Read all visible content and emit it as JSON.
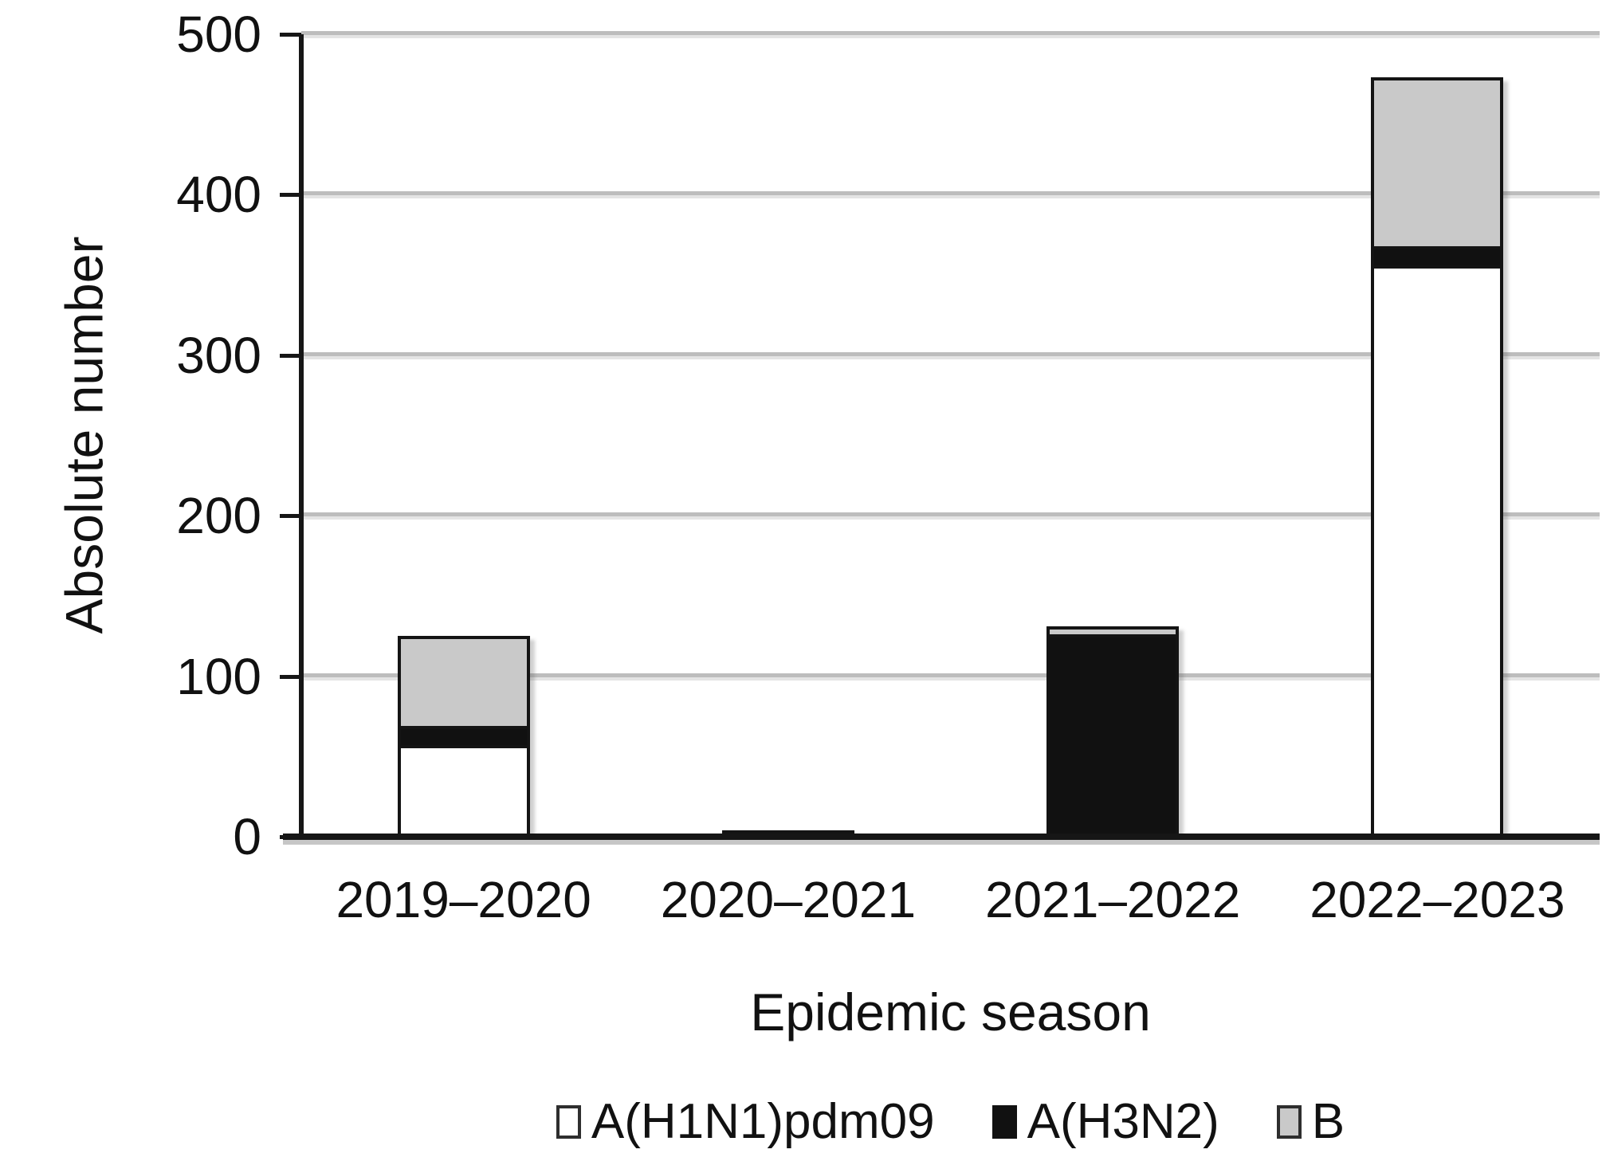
{
  "chart_data": {
    "type": "bar",
    "stacked": true,
    "categories": [
      "2019–2020",
      "2020–2021",
      "2021–2022",
      "2022–2023"
    ],
    "series": [
      {
        "name": "A(H1N1)pdm09",
        "color": "#ffffff",
        "values": [
          57,
          0,
          0,
          356
        ]
      },
      {
        "name": "A(H3N2)",
        "color": "#111111",
        "values": [
          12,
          2,
          126,
          12
        ]
      },
      {
        "name": "B",
        "color": "#c9c9c9",
        "values": [
          56,
          0,
          5,
          105
        ]
      }
    ],
    "totals": [
      125,
      2,
      131,
      473
    ],
    "xlabel": "Epidemic season",
    "ylabel": "Absolute number",
    "ylim": [
      0,
      500
    ],
    "yticks": [
      0,
      100,
      200,
      300,
      400,
      500
    ],
    "grid": true,
    "legend_position": "bottom",
    "axis_color": "#161616",
    "bar_outline_color": "#141414",
    "gridline_color": "#bdbdbd",
    "background_color": "#ffffff"
  }
}
